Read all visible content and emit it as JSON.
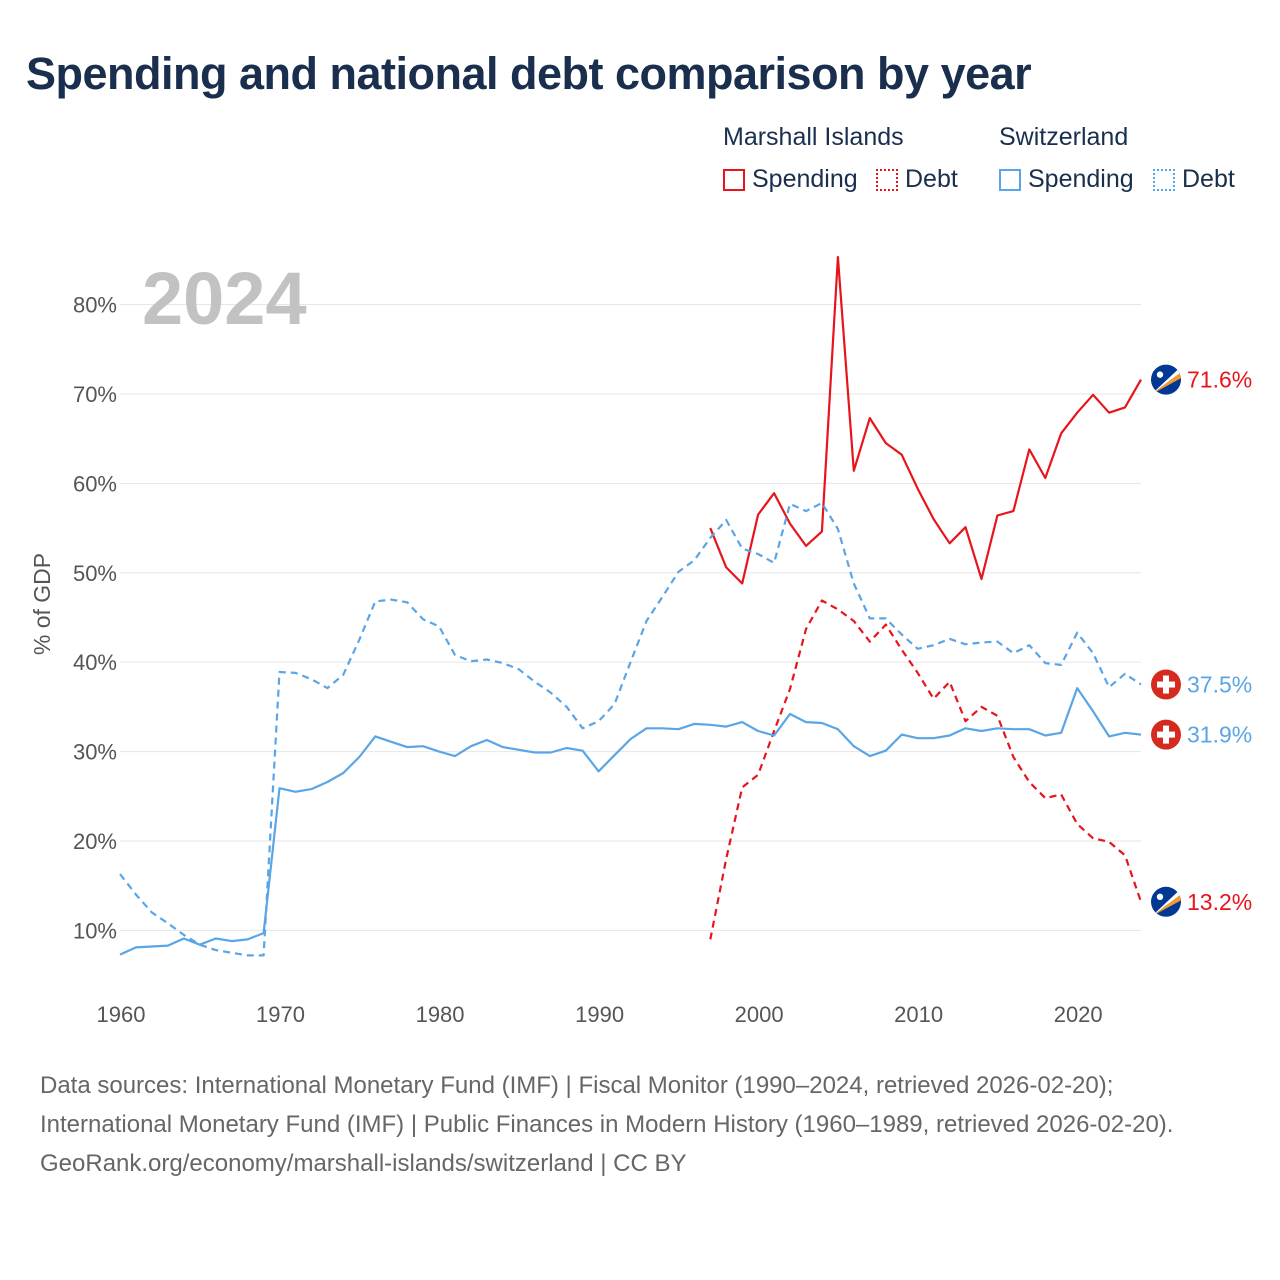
{
  "title": "Spending and national debt comparison by year",
  "legend": {
    "groups": [
      {
        "name": "Marshall Islands",
        "color": "#e8141c",
        "items": [
          {
            "label": "Spending",
            "style": "solid"
          },
          {
            "label": "Debt",
            "style": "dotted"
          }
        ]
      },
      {
        "name": "Switzerland",
        "color": "#5aa5e6",
        "items": [
          {
            "label": "Spending",
            "style": "solid"
          },
          {
            "label": "Debt",
            "style": "dotted"
          }
        ]
      }
    ]
  },
  "footer": {
    "sources": "Data sources: International Monetary Fund (IMF) | Fiscal Monitor (1990–2024, retrieved 2026-02-20); International Monetary Fund (IMF) | Public Finances in Modern History (1960–1989, retrieved 2026-02-20).",
    "credit": "GeoRank.org/economy/marshall-islands/switzerland | CC BY"
  },
  "chart_data": {
    "type": "line",
    "year_label": "2024",
    "ylabel": "% of GDP",
    "xlabel": "",
    "xlim": [
      1960,
      2024
    ],
    "ylim": [
      3,
      88
    ],
    "x_ticks": [
      1960,
      1970,
      1980,
      1990,
      2000,
      2010,
      2020
    ],
    "y_ticks": [
      10,
      20,
      30,
      40,
      50,
      60,
      70,
      80
    ],
    "y_tick_labels": [
      "10%",
      "20%",
      "30%",
      "40%",
      "50%",
      "60%",
      "70%",
      "80%"
    ],
    "grid": true,
    "series": [
      {
        "name": "Marshall Islands Spending",
        "country": "Marshall Islands",
        "flag": "marshall-islands-flag-icon",
        "color": "#e8141c",
        "dashed": false,
        "start": 1997,
        "end_label": "71.6%",
        "values": [
          55.0,
          50.6,
          48.8,
          56.5,
          58.9,
          55.5,
          53.0,
          54.6,
          85.3,
          61.4,
          67.3,
          64.5,
          63.2,
          59.4,
          56.0,
          53.3,
          55.1,
          49.3,
          56.4,
          56.9,
          63.8,
          60.6,
          65.6,
          67.9,
          69.9,
          67.9,
          68.5,
          71.6
        ]
      },
      {
        "name": "Marshall Islands Debt",
        "country": "Marshall Islands",
        "flag": "marshall-islands-flag-icon",
        "color": "#e8141c",
        "dashed": true,
        "start": 1997,
        "end_label": "13.2%",
        "values": [
          9.0,
          18.0,
          26.0,
          27.4,
          32.3,
          37.0,
          43.7,
          46.9,
          45.9,
          44.6,
          42.3,
          44.2,
          41.4,
          38.8,
          35.9,
          37.8,
          33.4,
          35.0,
          34.0,
          29.4,
          26.6,
          24.8,
          25.2,
          21.9,
          20.3,
          19.9,
          18.4,
          13.2
        ]
      },
      {
        "name": "Switzerland Spending",
        "country": "Switzerland",
        "flag": "switzerland-flag-icon",
        "color": "#5aa5e6",
        "dashed": false,
        "start": 1960,
        "end_label": "31.9%",
        "values": [
          7.3,
          8.1,
          8.2,
          8.3,
          9.1,
          8.4,
          9.1,
          8.8,
          9.0,
          9.7,
          25.9,
          25.5,
          25.8,
          26.6,
          27.6,
          29.4,
          31.7,
          31.1,
          30.5,
          30.6,
          30.0,
          29.5,
          30.6,
          31.3,
          30.5,
          30.2,
          29.9,
          29.9,
          30.4,
          30.1,
          27.8,
          29.6,
          31.4,
          32.6,
          32.6,
          32.5,
          33.1,
          33.0,
          32.8,
          33.3,
          32.3,
          31.8,
          34.2,
          33.3,
          33.2,
          32.5,
          30.6,
          29.5,
          30.1,
          31.9,
          31.5,
          31.5,
          31.8,
          32.6,
          32.3,
          32.6,
          32.5,
          32.5,
          31.8,
          32.1,
          37.1,
          34.5,
          31.7,
          32.1,
          31.9
        ]
      },
      {
        "name": "Switzerland Debt",
        "country": "Switzerland",
        "flag": "switzerland-flag-icon",
        "color": "#5aa5e6",
        "dashed": true,
        "start": 1960,
        "end_label": "37.5%",
        "values": [
          16.3,
          14.0,
          12.0,
          10.8,
          9.5,
          8.4,
          7.8,
          7.5,
          7.2,
          7.2,
          38.9,
          38.8,
          38.1,
          37.1,
          38.6,
          42.5,
          46.8,
          47.0,
          46.7,
          44.8,
          44.0,
          40.8,
          40.1,
          40.3,
          39.9,
          39.2,
          37.8,
          36.6,
          35.0,
          32.6,
          33.4,
          35.3,
          40.0,
          44.6,
          47.3,
          50.1,
          51.4,
          53.9,
          55.9,
          52.7,
          52.1,
          51.1,
          57.7,
          56.9,
          57.8,
          54.9,
          48.8,
          44.9,
          44.9,
          43.1,
          41.5,
          41.9,
          42.6,
          42.0,
          42.2,
          42.3,
          41.0,
          41.9,
          39.9,
          39.7,
          43.3,
          41.0,
          37.2,
          38.7,
          37.5
        ]
      }
    ]
  }
}
